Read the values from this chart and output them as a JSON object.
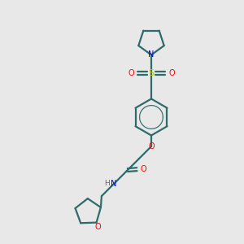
{
  "bg_color": "#e8e8e8",
  "bond_color": "#2f6b6b",
  "N_color": "#0000ff",
  "O_color": "#ff0000",
  "S_color": "#cccc00",
  "linewidth": 1.6,
  "figsize": [
    3.0,
    3.0
  ],
  "dpi": 100,
  "xlim": [
    0,
    10
  ],
  "ylim": [
    0,
    10
  ]
}
